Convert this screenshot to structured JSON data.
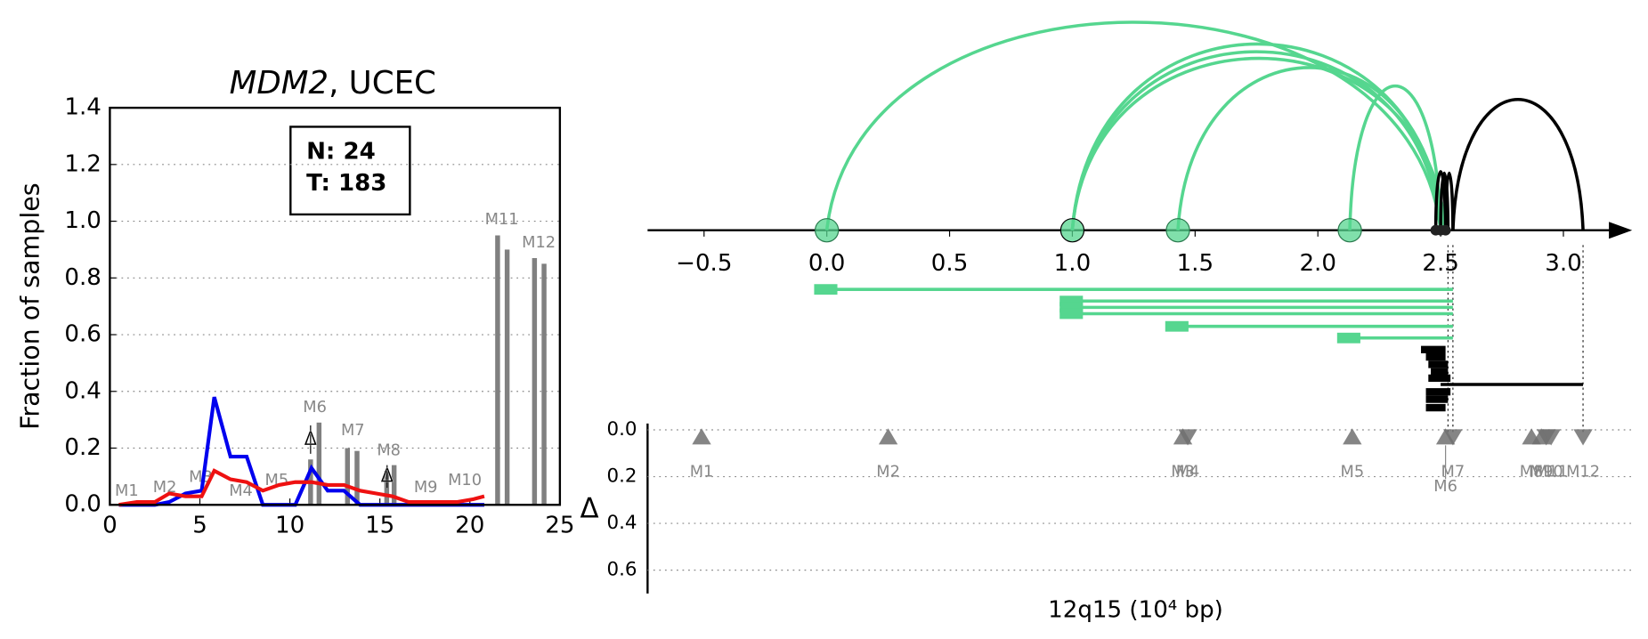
{
  "chart_data": [
    {
      "type": "line",
      "title_parts": [
        "MDM2",
        ", UCEC"
      ],
      "ylabel": "Fraction of samples",
      "annotation": [
        "N: 24",
        "T: 183"
      ],
      "xlim": [
        0,
        25
      ],
      "ylim": [
        0,
        1.4
      ],
      "xticks": [
        0,
        5,
        10,
        15,
        20,
        25
      ],
      "yticks": [
        {
          "value": 0,
          "label": "0.0"
        },
        {
          "value": 0.2,
          "label": "0.2"
        },
        {
          "value": 0.4,
          "label": "0.4"
        },
        {
          "value": 0.6,
          "label": "0.6"
        },
        {
          "value": 0.8,
          "label": "0.8"
        },
        {
          "value": 1.0,
          "label": "1.0"
        },
        {
          "value": 1.2,
          "label": "1.2"
        },
        {
          "value": 1.4,
          "label": "1.4"
        }
      ],
      "grid": true,
      "x": [
        0.5,
        1.5,
        2.5,
        3.3,
        4.2,
        5.1,
        5.8,
        6.7,
        7.6,
        8.5,
        9.4,
        10.3,
        11.2,
        12.1,
        13.0,
        13.9,
        14.8,
        15.7,
        16.6,
        17.5,
        18.4,
        19.3,
        20.2,
        20.8
      ],
      "series": [
        {
          "color": "#0000ee",
          "values": [
            0,
            0,
            0,
            0.01,
            0.04,
            0.05,
            0.38,
            0.17,
            0.17,
            0,
            0,
            0,
            0.13,
            0.05,
            0.05,
            0,
            0,
            0,
            0,
            0,
            0,
            0,
            0,
            0
          ]
        },
        {
          "color": "#ee1111",
          "values": [
            0,
            0.01,
            0.01,
            0.04,
            0.03,
            0.03,
            0.12,
            0.09,
            0.08,
            0.05,
            0.07,
            0.08,
            0.08,
            0.07,
            0.07,
            0.05,
            0.04,
            0.03,
            0.01,
            0.01,
            0.01,
            0.01,
            0.02,
            0.03
          ]
        }
      ],
      "bars": {
        "color": "#808080",
        "x": [
          11.15,
          11.62,
          13.2,
          13.73,
          15.38,
          15.79,
          21.54,
          22.07,
          23.59,
          24.12
        ],
        "values": [
          0.16,
          0.29,
          0.2,
          0.19,
          0.12,
          0.14,
          0.95,
          0.9,
          0.87,
          0.85
        ]
      },
      "marker_labels": [
        "M1",
        "M2",
        "M3",
        "M4",
        "M5",
        "M6",
        "M7",
        "M8",
        "M9",
        "M10",
        "M11",
        "M12"
      ],
      "deltas": [
        {
          "label": "Δ",
          "x": 11.15,
          "value": 0.23,
          "error": 0.05
        },
        {
          "label": "Δ",
          "x": 15.4,
          "value": 0.1,
          "error": 0.04
        }
      ]
    },
    {
      "type": "arc",
      "xlim": [
        -0.73,
        3.28
      ],
      "xticks": [
        {
          "value": -0.5,
          "label": "−0.5"
        },
        {
          "value": 0,
          "label": "0.0"
        },
        {
          "value": 0.5,
          "label": "0.5"
        },
        {
          "value": 1.0,
          "label": "1.0"
        },
        {
          "value": 1.5,
          "label": "1.5"
        },
        {
          "value": 2.0,
          "label": "2.0"
        },
        {
          "value": 2.5,
          "label": "2.5"
        },
        {
          "value": 3.0,
          "label": "3.0"
        }
      ],
      "arcs": [
        {
          "start": 0.0,
          "end": 2.5,
          "color": "#55d68f"
        },
        {
          "start": 1.0,
          "end": 2.5,
          "color": "#55d68f"
        },
        {
          "start": 1.0,
          "end": 2.51,
          "color": "#55d68f"
        },
        {
          "start": 1.0,
          "end": 2.52,
          "color": "#55d68f"
        },
        {
          "start": 1.43,
          "end": 2.5,
          "color": "#55d68f"
        },
        {
          "start": 2.13,
          "end": 2.5,
          "color": "#55d68f"
        },
        {
          "start": 2.48,
          "end": 2.52,
          "color": "#000000"
        },
        {
          "start": 2.5,
          "end": 2.53,
          "color": "#000000"
        },
        {
          "start": 2.52,
          "end": 2.55,
          "color": "#000000"
        },
        {
          "start": 2.55,
          "end": 3.08,
          "color": "#000000"
        }
      ],
      "nodes": {
        "color": "#55d68f",
        "x": [
          0.0,
          1.0,
          1.43,
          2.13
        ]
      },
      "dots": {
        "color": "#222222",
        "x": [
          2.48,
          2.5,
          2.52
        ]
      },
      "segments": [
        {
          "start": 0.0,
          "end": 2.55,
          "color": "#55d68f"
        },
        {
          "start": 1.0,
          "end": 2.55,
          "color": "#55d68f"
        },
        {
          "start": 1.0,
          "end": 2.55,
          "color": "#55d68f"
        },
        {
          "start": 1.0,
          "end": 2.55,
          "color": "#55d68f"
        },
        {
          "start": 1.43,
          "end": 2.55,
          "color": "#55d68f"
        },
        {
          "start": 2.13,
          "end": 2.55,
          "color": "#55d68f"
        },
        {
          "start": 2.42,
          "end": 2.52,
          "color": "#000000"
        },
        {
          "start": 2.44,
          "end": 2.52,
          "color": "#000000"
        },
        {
          "start": 2.45,
          "end": 2.53,
          "color": "#000000"
        },
        {
          "start": 2.46,
          "end": 2.53,
          "color": "#000000"
        },
        {
          "start": 2.45,
          "end": 2.54,
          "color": "#000000"
        },
        {
          "start": 2.5,
          "end": 3.08,
          "color": "#000000"
        },
        {
          "start": 2.44,
          "end": 2.54,
          "color": "#000000"
        },
        {
          "start": 2.44,
          "end": 2.53,
          "color": "#000000"
        },
        {
          "start": 2.44,
          "end": 2.52,
          "color": "#000000"
        }
      ],
      "guides": [
        2.53,
        2.55,
        3.08
      ]
    },
    {
      "type": "triangles",
      "ylabel": "Δ",
      "xlabel": "12q15 (10⁴ bp)",
      "ylim": [
        0,
        0.7
      ],
      "yticks": [
        {
          "value": 0,
          "label": "0.0"
        },
        {
          "value": 0.2,
          "label": "0.2"
        },
        {
          "value": 0.4,
          "label": "0.4"
        },
        {
          "value": 0.6,
          "label": "0.6"
        }
      ],
      "grid": true,
      "color": "#707070",
      "labels": [
        "M1",
        "M2",
        "M3",
        "M4",
        "M5",
        "M6",
        "M7",
        "M8",
        "M9",
        "M10",
        "M11",
        "M12"
      ],
      "x": [
        -0.51,
        0.25,
        1.45,
        1.47,
        2.14,
        2.52,
        2.55,
        2.87,
        2.91,
        2.93,
        2.95,
        3.08
      ],
      "values": [
        0.03,
        0.03,
        0.03,
        0.03,
        0.03,
        0.03,
        0.03,
        0.03,
        0.03,
        0.03,
        0.03,
        0.03
      ],
      "direction": [
        "up",
        "up",
        "up",
        "down",
        "up",
        "up",
        "down",
        "up",
        "up",
        "down",
        "down",
        "down"
      ]
    }
  ]
}
